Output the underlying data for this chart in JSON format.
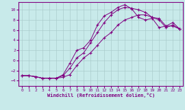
{
  "xlabel": "Windchill (Refroidissement éolien,°C)",
  "bg_color": "#c8eaea",
  "grid_color": "#aacccc",
  "line_color": "#800080",
  "xlim": [
    -0.5,
    23.5
  ],
  "ylim": [
    -5,
    11.5
  ],
  "xticks": [
    0,
    1,
    2,
    3,
    4,
    5,
    6,
    7,
    8,
    9,
    10,
    11,
    12,
    13,
    14,
    15,
    16,
    17,
    18,
    19,
    20,
    21,
    22,
    23
  ],
  "yticks": [
    -4,
    -2,
    0,
    2,
    4,
    6,
    8,
    10
  ],
  "line1_x": [
    0,
    1,
    2,
    3,
    4,
    5,
    6,
    7,
    8,
    9,
    10,
    11,
    12,
    13,
    14,
    15,
    16,
    17,
    18,
    19,
    20,
    21,
    22,
    23
  ],
  "line1_y": [
    -3,
    -3,
    -3.2,
    -3.5,
    -3.5,
    -3.5,
    -3.3,
    -2.8,
    -1.0,
    0.5,
    1.5,
    3.0,
    4.5,
    5.5,
    7.0,
    8.0,
    8.5,
    9.0,
    9.0,
    8.5,
    8.0,
    6.5,
    7.0,
    6.2
  ],
  "line2_x": [
    0,
    1,
    2,
    3,
    4,
    5,
    6,
    7,
    8,
    9,
    10,
    11,
    12,
    13,
    14,
    15,
    16,
    17,
    18,
    19,
    20,
    21,
    22,
    23
  ],
  "line2_y": [
    -3,
    -3,
    -3.2,
    -3.5,
    -3.5,
    -3.5,
    -3.0,
    -1.5,
    0.5,
    1.5,
    3.5,
    5.5,
    7.5,
    9.0,
    10.0,
    10.5,
    10.3,
    10.0,
    9.5,
    8.5,
    8.3,
    6.8,
    6.8,
    6.2
  ],
  "line3_x": [
    0,
    1,
    2,
    3,
    4,
    5,
    6,
    7,
    8,
    9,
    10,
    11,
    12,
    13,
    14,
    15,
    16,
    17,
    18,
    19,
    20,
    21,
    22,
    23
  ],
  "line3_y": [
    -3,
    -3,
    -3.2,
    -3.5,
    -3.5,
    -3.5,
    -2.8,
    -0.5,
    2.0,
    2.5,
    4.0,
    7.0,
    8.8,
    9.5,
    10.5,
    11.0,
    10.2,
    8.5,
    8.0,
    8.3,
    6.5,
    6.8,
    7.5,
    6.2
  ]
}
